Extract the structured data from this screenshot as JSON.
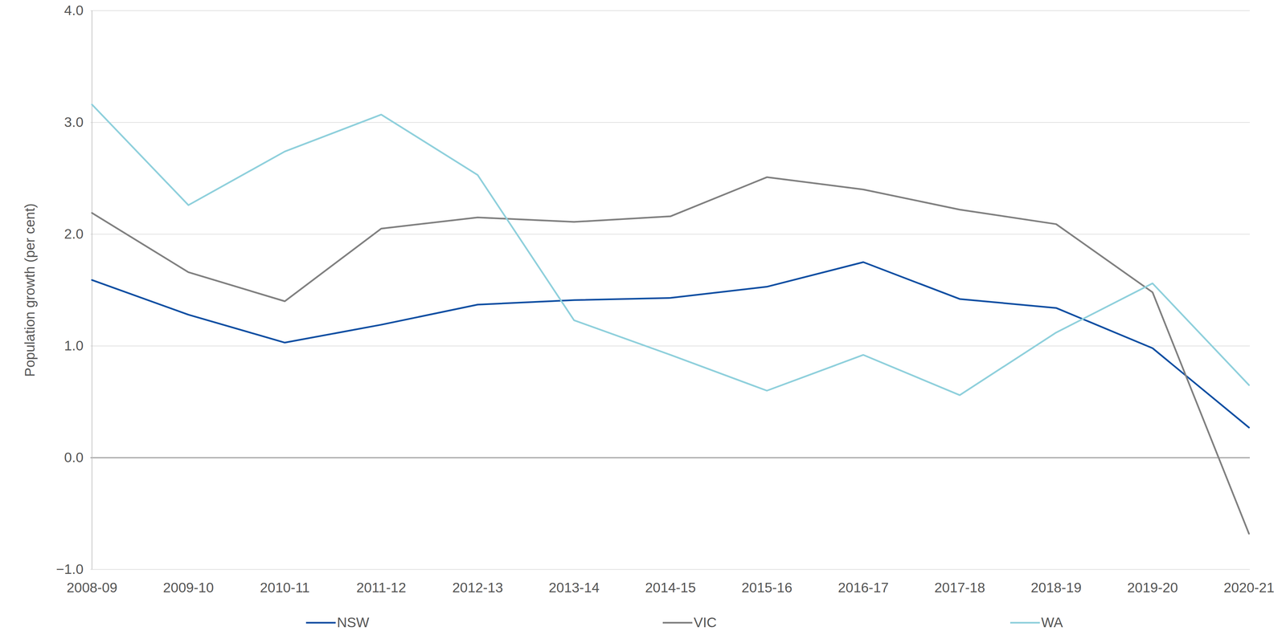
{
  "chart_data": {
    "type": "line",
    "y_label": "Population growth (per cent)",
    "categories": [
      "2008-09",
      "2009-10",
      "2010-11",
      "2011-12",
      "2012-13",
      "2013-14",
      "2014-15",
      "2015-16",
      "2016-17",
      "2017-18",
      "2018-19",
      "2019-20",
      "2020-21"
    ],
    "series": [
      {
        "name": "NSW",
        "color": "#0b4ea2",
        "values": [
          1.59,
          1.28,
          1.03,
          1.19,
          1.37,
          1.41,
          1.43,
          1.53,
          1.75,
          1.42,
          1.34,
          0.98,
          0.27
        ]
      },
      {
        "name": "VIC",
        "color": "#808080",
        "values": [
          2.19,
          1.66,
          1.4,
          2.05,
          2.15,
          2.11,
          2.16,
          2.51,
          2.4,
          2.22,
          2.09,
          1.48,
          -0.68
        ]
      },
      {
        "name": "WA",
        "color": "#8fd0dc",
        "values": [
          3.16,
          2.26,
          2.74,
          3.07,
          2.53,
          1.23,
          0.92,
          0.6,
          0.92,
          0.56,
          1.12,
          1.56,
          0.65
        ]
      }
    ],
    "ylim": [
      -1,
      4
    ],
    "yticks": [
      -1,
      0,
      1,
      2,
      3,
      4
    ],
    "grid": true,
    "legend": "bottom"
  }
}
